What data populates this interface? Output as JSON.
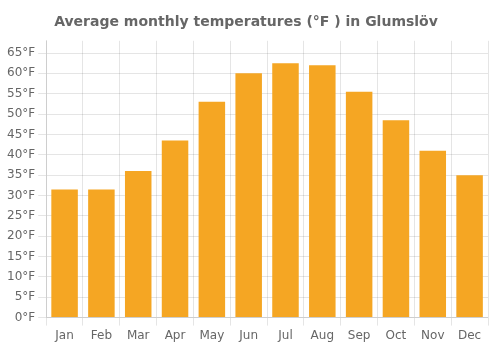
{
  "chart_data": {
    "type": "bar",
    "title": "Average monthly temperatures (°F ) in Glumslöv",
    "categories": [
      "Jan",
      "Feb",
      "Mar",
      "Apr",
      "May",
      "Jun",
      "Jul",
      "Aug",
      "Sep",
      "Oct",
      "Nov",
      "Dec"
    ],
    "values": [
      31.5,
      31.5,
      36.0,
      43.5,
      53.0,
      60.0,
      62.5,
      62.0,
      55.5,
      48.5,
      41.0,
      35.0
    ],
    "color": "#F5A623",
    "ylim": [
      0,
      68
    ],
    "yticks": [
      {
        "value": 0,
        "label": "0°F"
      },
      {
        "value": 5,
        "label": "5°F"
      },
      {
        "value": 10,
        "label": "10°F"
      },
      {
        "value": 15,
        "label": "15°F"
      },
      {
        "value": 20,
        "label": "20°F"
      },
      {
        "value": 25,
        "label": "25°F"
      },
      {
        "value": 30,
        "label": "30°F"
      },
      {
        "value": 35,
        "label": "35°F"
      },
      {
        "value": 40,
        "label": "40°F"
      },
      {
        "value": 45,
        "label": "45°F"
      },
      {
        "value": 50,
        "label": "50°F"
      },
      {
        "value": 55,
        "label": "55°F"
      },
      {
        "value": 60,
        "label": "60°F"
      },
      {
        "value": 65,
        "label": "65°F"
      }
    ],
    "grid": true
  }
}
